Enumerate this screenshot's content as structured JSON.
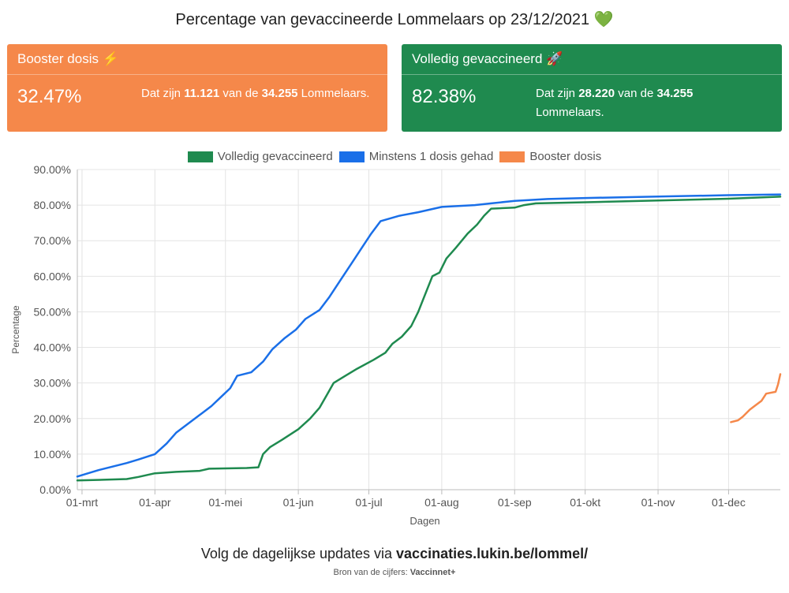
{
  "title": "Percentage van gevaccineerde Lommelaars op 23/12/2021 💚",
  "cards": {
    "booster": {
      "title": "Booster dosis ⚡",
      "percent": "32.47%",
      "desc_prefix": "Dat zijn ",
      "count": "11.121",
      "desc_mid": " van de ",
      "total": "34.255",
      "desc_suffix": " Lommelaars.",
      "color": "#f5884a"
    },
    "full": {
      "title": "Volledig gevaccineerd 🚀",
      "percent": "82.38%",
      "desc_prefix": "Dat zijn ",
      "count": "28.220",
      "desc_mid": " van de ",
      "total": "34.255",
      "desc_suffix": " Lommelaars.",
      "color": "#1f8a4f"
    }
  },
  "footer": {
    "prefix": "Volg de dagelijkse updates via ",
    "link": "vaccinaties.lukin.be/lommel/",
    "source_prefix": "Bron van de cijfers: ",
    "source": "Vaccinnet+"
  },
  "chart_data": {
    "type": "line",
    "xlabel": "Dagen",
    "ylabel": "Percentage",
    "ylim": [
      0,
      90
    ],
    "yticks": [
      "0.00%",
      "10.00%",
      "20.00%",
      "30.00%",
      "40.00%",
      "50.00%",
      "60.00%",
      "70.00%",
      "80.00%",
      "90.00%"
    ],
    "xlim": [
      "2021-02-27",
      "2021-12-23"
    ],
    "xticks": [
      {
        "date": "2021-03-01",
        "label": "01-mrt"
      },
      {
        "date": "2021-04-01",
        "label": "01-apr"
      },
      {
        "date": "2021-05-01",
        "label": "01-mei"
      },
      {
        "date": "2021-06-01",
        "label": "01-jun"
      },
      {
        "date": "2021-07-01",
        "label": "01-jul"
      },
      {
        "date": "2021-08-01",
        "label": "01-aug"
      },
      {
        "date": "2021-09-01",
        "label": "01-sep"
      },
      {
        "date": "2021-10-01",
        "label": "01-okt"
      },
      {
        "date": "2021-11-01",
        "label": "01-nov"
      },
      {
        "date": "2021-12-01",
        "label": "01-dec"
      }
    ],
    "legend_position": "top",
    "grid": true,
    "series": [
      {
        "name": "Volledig gevaccineerd",
        "color": "#1f8a4f",
        "points": [
          [
            "2021-02-27",
            2.6
          ],
          [
            "2021-03-10",
            2.8
          ],
          [
            "2021-03-20",
            3.0
          ],
          [
            "2021-03-25",
            3.6
          ],
          [
            "2021-04-01",
            4.6
          ],
          [
            "2021-04-10",
            5.0
          ],
          [
            "2021-04-20",
            5.3
          ],
          [
            "2021-04-24",
            5.9
          ],
          [
            "2021-05-10",
            6.1
          ],
          [
            "2021-05-15",
            6.3
          ],
          [
            "2021-05-17",
            10.0
          ],
          [
            "2021-05-20",
            12.0
          ],
          [
            "2021-05-25",
            14.0
          ],
          [
            "2021-06-01",
            17.0
          ],
          [
            "2021-06-06",
            20.0
          ],
          [
            "2021-06-10",
            23.0
          ],
          [
            "2021-06-13",
            26.5
          ],
          [
            "2021-06-16",
            30.0
          ],
          [
            "2021-06-21",
            32.0
          ],
          [
            "2021-06-26",
            34.0
          ],
          [
            "2021-07-03",
            36.5
          ],
          [
            "2021-07-08",
            38.5
          ],
          [
            "2021-07-11",
            41.0
          ],
          [
            "2021-07-15",
            43.0
          ],
          [
            "2021-07-19",
            46.0
          ],
          [
            "2021-07-22",
            50.0
          ],
          [
            "2021-07-25",
            55.0
          ],
          [
            "2021-07-28",
            60.0
          ],
          [
            "2021-07-31",
            61.0
          ],
          [
            "2021-08-03",
            65.0
          ],
          [
            "2021-08-07",
            68.0
          ],
          [
            "2021-08-12",
            72.0
          ],
          [
            "2021-08-16",
            74.5
          ],
          [
            "2021-08-19",
            77.0
          ],
          [
            "2021-08-22",
            79.0
          ],
          [
            "2021-09-01",
            79.3
          ],
          [
            "2021-09-05",
            80.0
          ],
          [
            "2021-09-10",
            80.5
          ],
          [
            "2021-10-01",
            80.8
          ],
          [
            "2021-11-01",
            81.3
          ],
          [
            "2021-12-01",
            81.8
          ],
          [
            "2021-12-23",
            82.38
          ]
        ]
      },
      {
        "name": "Minstens 1 dosis gehad",
        "color": "#1a6fe8",
        "points": [
          [
            "2021-02-27",
            3.7
          ],
          [
            "2021-03-03",
            4.5
          ],
          [
            "2021-03-08",
            5.5
          ],
          [
            "2021-03-14",
            6.5
          ],
          [
            "2021-03-20",
            7.5
          ],
          [
            "2021-03-25",
            8.5
          ],
          [
            "2021-04-01",
            10.0
          ],
          [
            "2021-04-06",
            13.0
          ],
          [
            "2021-04-10",
            16.0
          ],
          [
            "2021-04-15",
            18.5
          ],
          [
            "2021-04-20",
            21.0
          ],
          [
            "2021-04-25",
            23.5
          ],
          [
            "2021-04-29",
            26.0
          ],
          [
            "2021-05-03",
            28.5
          ],
          [
            "2021-05-06",
            32.0
          ],
          [
            "2021-05-12",
            33.0
          ],
          [
            "2021-05-17",
            36.0
          ],
          [
            "2021-05-21",
            39.5
          ],
          [
            "2021-05-26",
            42.5
          ],
          [
            "2021-05-31",
            45.0
          ],
          [
            "2021-06-04",
            48.0
          ],
          [
            "2021-06-10",
            50.5
          ],
          [
            "2021-06-14",
            54.0
          ],
          [
            "2021-06-19",
            59.0
          ],
          [
            "2021-06-24",
            64.0
          ],
          [
            "2021-06-28",
            68.0
          ],
          [
            "2021-07-02",
            72.0
          ],
          [
            "2021-07-06",
            75.5
          ],
          [
            "2021-07-14",
            77.0
          ],
          [
            "2021-07-22",
            78.0
          ],
          [
            "2021-08-01",
            79.5
          ],
          [
            "2021-08-15",
            80.0
          ],
          [
            "2021-08-22",
            80.5
          ],
          [
            "2021-09-01",
            81.2
          ],
          [
            "2021-09-15",
            81.7
          ],
          [
            "2021-10-01",
            82.0
          ],
          [
            "2021-11-01",
            82.4
          ],
          [
            "2021-12-01",
            82.8
          ],
          [
            "2021-12-23",
            83.0
          ]
        ]
      },
      {
        "name": "Booster dosis",
        "color": "#f5884a",
        "points": [
          [
            "2021-12-02",
            19.0
          ],
          [
            "2021-12-05",
            19.5
          ],
          [
            "2021-12-07",
            20.5
          ],
          [
            "2021-12-10",
            22.5
          ],
          [
            "2021-12-12",
            23.5
          ],
          [
            "2021-12-15",
            25.0
          ],
          [
            "2021-12-17",
            27.0
          ],
          [
            "2021-12-21",
            27.5
          ],
          [
            "2021-12-22",
            29.5
          ],
          [
            "2021-12-23",
            32.47
          ]
        ]
      }
    ]
  }
}
